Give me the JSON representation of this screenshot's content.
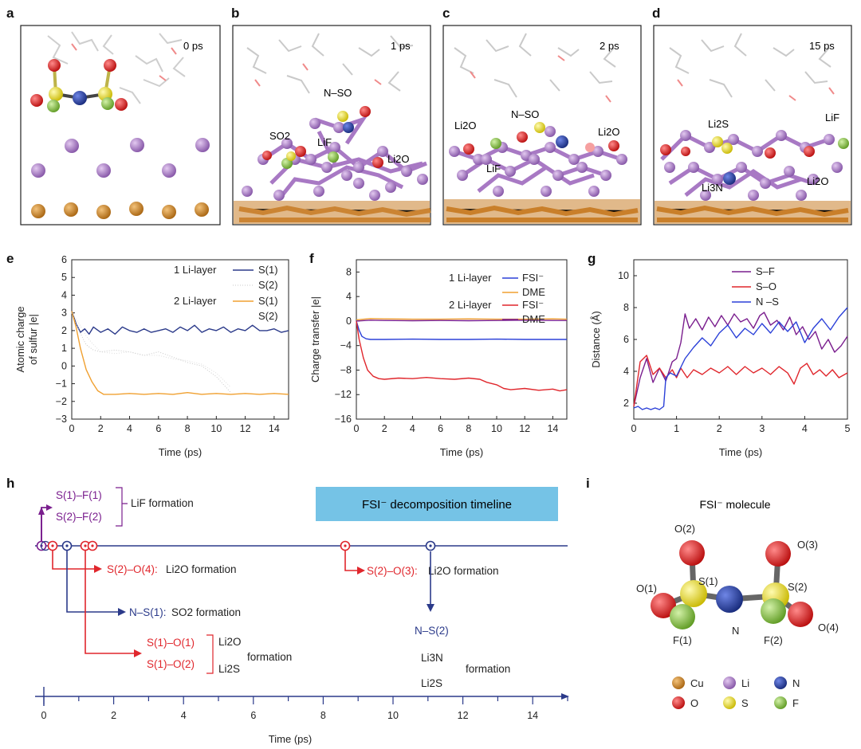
{
  "colors": {
    "cu": "#c97f2a",
    "li": "#a879c4",
    "n": "#1f3ea8",
    "o": "#e51b1b",
    "s": "#f1e33a",
    "f": "#86c23c",
    "navy": "#2b3a8a",
    "red": "#e0262c",
    "purple": "#7a1e8e",
    "orange": "#f0a030",
    "blue": "#2b40d8",
    "banner": "#75c3e6"
  },
  "panels": {
    "a": {
      "label": "a",
      "time": "0 ps"
    },
    "b": {
      "label": "b",
      "time": "1 ps",
      "tags": [
        "N–SO",
        "SO2",
        "LiF",
        "Li2O"
      ]
    },
    "c": {
      "label": "c",
      "time": "2 ps",
      "tags": [
        "N–SO",
        "Li2O",
        "LiF",
        "Li2O"
      ]
    },
    "d": {
      "label": "d",
      "time": "15 ps",
      "tags": [
        "Li2S",
        "LiF",
        "Li3N",
        "Li2O"
      ]
    },
    "e": {
      "label": "e"
    },
    "f": {
      "label": "f"
    },
    "g": {
      "label": "g"
    },
    "h": {
      "label": "h"
    },
    "i": {
      "label": "i"
    }
  },
  "chart_data": [
    {
      "id": "e",
      "type": "line",
      "xlabel": "Time (ps)",
      "ylabel_lines": [
        "Atomic charge",
        "of sulfur |e|"
      ],
      "xlim": [
        0,
        15
      ],
      "ylim": [
        -3,
        6
      ],
      "xticks": [
        "0",
        "2",
        "4",
        "6",
        "8",
        "10",
        "12",
        "14"
      ],
      "yticks": [
        "6",
        "5",
        "4",
        "3",
        "2",
        "1",
        "0",
        "−1",
        "−2",
        "−3"
      ],
      "legend": {
        "group1": "1 Li-layer",
        "group2": "2 Li-layer",
        "s1": "S(1)",
        "s2": "S(2)"
      },
      "series": [
        {
          "name": "1 Li-layer S(1)",
          "x": [
            0,
            0.3,
            0.6,
            0.9,
            1.2,
            1.5,
            2,
            2.5,
            3,
            3.5,
            4,
            4.5,
            5,
            5.5,
            6,
            6.5,
            7,
            7.5,
            8,
            8.5,
            9,
            9.5,
            10,
            10.5,
            11,
            11.5,
            12,
            12.5,
            13,
            13.5,
            14,
            14.5,
            15
          ],
          "values": [
            3.1,
            2.4,
            1.9,
            2.1,
            1.8,
            2.2,
            1.9,
            2.1,
            1.8,
            2.2,
            2,
            1.9,
            2.1,
            1.9,
            2,
            2.1,
            1.9,
            2.2,
            2,
            2.3,
            1.9,
            2.1,
            2,
            2.2,
            1.9,
            2.1,
            2,
            2.3,
            2,
            2,
            2.1,
            1.9,
            2
          ]
        },
        {
          "name": "1 Li-layer S(2)",
          "x": [
            0,
            0.5,
            1,
            1.5,
            2,
            3,
            4,
            5,
            6,
            7,
            8,
            9,
            10,
            11
          ],
          "values": [
            3,
            2,
            1.2,
            0.9,
            0.8,
            0.9,
            0.8,
            0.6,
            0.8,
            0.5,
            0.2,
            0,
            -0.6,
            -1.5
          ]
        },
        {
          "name": "2 Li-layer S(1)",
          "x": [
            0,
            0.3,
            0.6,
            1,
            1.4,
            1.8,
            2.2,
            3,
            4,
            5,
            6,
            7,
            8,
            9,
            10,
            11,
            12,
            13,
            14,
            15
          ],
          "values": [
            3.1,
            2.2,
            1,
            -0.2,
            -0.9,
            -1.4,
            -1.6,
            -1.6,
            -1.55,
            -1.6,
            -1.55,
            -1.6,
            -1.5,
            -1.6,
            -1.55,
            -1.6,
            -1.55,
            -1.6,
            -1.55,
            -1.6
          ]
        },
        {
          "name": "2 Li-layer S(2)",
          "x": [
            0,
            0.5,
            1,
            1.5,
            2,
            3,
            4,
            5,
            6,
            7,
            8,
            9,
            10,
            11
          ],
          "values": [
            3,
            2.4,
            1.7,
            1.2,
            0.8,
            0.7,
            0.8,
            0.6,
            0.6,
            0.4,
            0.3,
            0.1,
            -0.4,
            -1.2
          ]
        }
      ]
    },
    {
      "id": "f",
      "type": "line",
      "xlabel": "Time (ps)",
      "ylabel": "Charge transfer |e|",
      "xlim": [
        0,
        15
      ],
      "ylim": [
        -16,
        10
      ],
      "xticks": [
        "0",
        "2",
        "4",
        "6",
        "8",
        "10",
        "12",
        "14"
      ],
      "yticks": [
        "8",
        "4",
        "0",
        "−4",
        "−8",
        "−12",
        "−16"
      ],
      "legend": {
        "group1": "1 Li-layer",
        "group2": "2 Li-layer",
        "fsi": "FSI⁻",
        "dme": "DME"
      },
      "series": [
        {
          "name": "1 Li-layer FSI⁻",
          "x": [
            0,
            0.2,
            0.4,
            0.7,
            1,
            2,
            4,
            6,
            8,
            10,
            12,
            14,
            15
          ],
          "values": [
            0,
            -1.5,
            -2.5,
            -2.9,
            -3,
            -3,
            -2.95,
            -3,
            -3,
            -2.95,
            -3,
            -3,
            -3
          ]
        },
        {
          "name": "1 Li-layer DME",
          "x": [
            0,
            1,
            2,
            4,
            6,
            8,
            10,
            12,
            14,
            15
          ],
          "values": [
            0.2,
            0.4,
            0.35,
            0.3,
            0.3,
            0.35,
            0.3,
            0.3,
            0.35,
            0.3
          ]
        },
        {
          "name": "2 Li-layer FSI⁻",
          "x": [
            0,
            0.2,
            0.5,
            0.8,
            1.2,
            1.6,
            2,
            3,
            4,
            5,
            6,
            7,
            8,
            8.8,
            9.3,
            10,
            10.5,
            11,
            12,
            13,
            14,
            14.5,
            15
          ],
          "values": [
            0,
            -3,
            -6,
            -8,
            -9,
            -9.4,
            -9.5,
            -9.3,
            -9.4,
            -9.2,
            -9.4,
            -9.5,
            -9.3,
            -9.5,
            -10,
            -10.4,
            -11,
            -11.2,
            -11,
            -11.3,
            -11.1,
            -11.4,
            -11.2
          ]
        },
        {
          "name": "2 Li-layer DME",
          "x": [
            0,
            1,
            2,
            4,
            6,
            8,
            10,
            12,
            14,
            15
          ],
          "values": [
            0,
            0.15,
            0.1,
            0.05,
            0.1,
            0.05,
            0.1,
            0.15,
            0.1,
            0.1
          ]
        }
      ]
    },
    {
      "id": "g",
      "type": "line",
      "xlabel": "Time (ps)",
      "ylabel": "Distance (Å)",
      "xlim": [
        0,
        5
      ],
      "ylim": [
        1,
        11
      ],
      "xticks": [
        "0",
        "1",
        "2",
        "3",
        "4",
        "5"
      ],
      "yticks": [
        "10",
        "8",
        "6",
        "4",
        "2"
      ],
      "legend": [
        "S–F",
        "S–O",
        "N –S"
      ],
      "series": [
        {
          "name": "S–F",
          "x": [
            0,
            0.15,
            0.3,
            0.45,
            0.6,
            0.75,
            0.9,
            1,
            1.1,
            1.2,
            1.3,
            1.45,
            1.6,
            1.75,
            1.9,
            2.05,
            2.2,
            2.35,
            2.5,
            2.65,
            2.8,
            2.95,
            3.05,
            3.2,
            3.35,
            3.5,
            3.65,
            3.8,
            3.95,
            4.1,
            4.25,
            4.4,
            4.55,
            4.7,
            4.85,
            5
          ],
          "values": [
            1.8,
            3.6,
            4.8,
            3.3,
            4.2,
            3.4,
            4.6,
            4.8,
            5.8,
            7.6,
            6.7,
            7.3,
            6.6,
            7.4,
            6.8,
            7.5,
            6.9,
            7.6,
            7.1,
            7.3,
            6.7,
            7.5,
            7.7,
            6.9,
            7.2,
            6.6,
            7.4,
            6.3,
            6.8,
            6,
            6.5,
            5.4,
            6,
            5.2,
            5.6,
            6.2
          ]
        },
        {
          "name": "S–O",
          "x": [
            0,
            0.15,
            0.3,
            0.45,
            0.6,
            0.75,
            0.9,
            1,
            1.1,
            1.25,
            1.4,
            1.6,
            1.8,
            2,
            2.2,
            2.4,
            2.6,
            2.8,
            3,
            3.2,
            3.4,
            3.6,
            3.75,
            3.9,
            4.05,
            4.2,
            4.35,
            4.5,
            4.65,
            4.8,
            5
          ],
          "values": [
            1.8,
            4.6,
            5,
            3.8,
            4.2,
            3.6,
            4.1,
            3.6,
            4.2,
            3.6,
            4.1,
            3.8,
            4.2,
            3.9,
            4.3,
            3.8,
            4.3,
            3.9,
            4.2,
            3.8,
            4.3,
            3.9,
            3.2,
            4.2,
            4.5,
            3.8,
            4.1,
            3.7,
            4.1,
            3.6,
            3.9
          ]
        },
        {
          "name": "N –S",
          "x": [
            0,
            0.1,
            0.2,
            0.3,
            0.4,
            0.5,
            0.6,
            0.7,
            0.75,
            0.85,
            1,
            1.2,
            1.4,
            1.6,
            1.8,
            2,
            2.2,
            2.4,
            2.6,
            2.8,
            3,
            3.2,
            3.4,
            3.6,
            3.8,
            4,
            4.2,
            4.4,
            4.6,
            4.8,
            5
          ],
          "values": [
            1.7,
            1.8,
            1.6,
            1.7,
            1.6,
            1.7,
            1.6,
            1.8,
            3.6,
            3.9,
            3.7,
            4.8,
            5.5,
            6.1,
            5.6,
            6.4,
            6.9,
            6.1,
            6.7,
            6.3,
            7,
            6.4,
            7.1,
            6.5,
            7.1,
            5.8,
            6.7,
            7.3,
            6.6,
            7.4,
            8
          ]
        }
      ]
    }
  ],
  "timeline": {
    "banner": "FSI⁻ decomposition timeline",
    "lif_items": [
      "S(1)–F(1)",
      "S(2)–F(2)"
    ],
    "lif_label": "LiF formation",
    "li2o_a_bond": "S(2)–O(4):",
    "li2o_a_label": "Li2O formation",
    "so2_bond": "N–S(1):",
    "so2_label": "SO2 formation",
    "so_items": [
      "S(1)–O(1)",
      "S(1)–O(2)"
    ],
    "so_products": [
      "Li2O",
      "Li2S"
    ],
    "so_label": "formation",
    "li2o_b_bond": "S(2)–O(3):",
    "li2o_b_label": "Li2O formation",
    "ns2": "N–S(2)",
    "ns2_products": [
      "Li3N",
      "Li2S"
    ],
    "ns2_label": "formation",
    "xticks": [
      "0",
      "2",
      "4",
      "6",
      "8",
      "10",
      "12",
      "14"
    ],
    "xlabel": "Time (ps)"
  },
  "molecule": {
    "title": "FSI⁻ molecule",
    "atoms": [
      "O(2)",
      "O(3)",
      "S(1)",
      "S(2)",
      "O(1)",
      "N",
      "F(1)",
      "F(2)",
      "O(4)"
    ],
    "legend": [
      "Cu",
      "Li",
      "N",
      "O",
      "S",
      "F"
    ]
  }
}
